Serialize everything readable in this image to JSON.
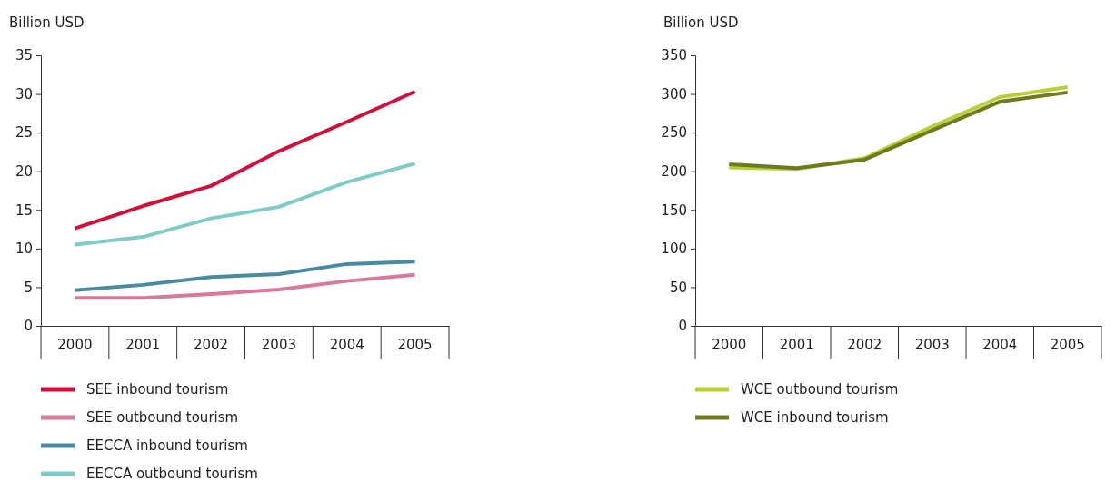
{
  "chart_data": [
    {
      "type": "line",
      "ylabel": "Billion USD",
      "categories": [
        "2000",
        "2001",
        "2002",
        "2003",
        "2004",
        "2005"
      ],
      "ylim": [
        0,
        35
      ],
      "yticks": [
        0,
        5,
        10,
        15,
        20,
        25,
        30,
        35
      ],
      "grid": false,
      "legend": "bottom",
      "marker": "none",
      "line_style": "solid",
      "series": [
        {
          "name": "SEE inbound tourism",
          "color": "#d0103a",
          "values": [
            12.6,
            15.5,
            18.1,
            22.6,
            26.4,
            30.3
          ]
        },
        {
          "name": "SEE outbound tourism",
          "color": "#d9799a",
          "values": [
            3.6,
            3.6,
            4.1,
            4.7,
            5.8,
            6.6
          ]
        },
        {
          "name": "EECCA inbound tourism",
          "color": "#4a8aa0",
          "values": [
            4.6,
            5.3,
            6.3,
            6.7,
            8.0,
            8.3
          ]
        },
        {
          "name": "EECCA outbound tourism",
          "color": "#7dcdc6",
          "values": [
            10.5,
            11.5,
            13.9,
            15.4,
            18.6,
            21.0
          ]
        }
      ]
    },
    {
      "type": "line",
      "ylabel": "Billion USD",
      "categories": [
        "2000",
        "2001",
        "2002",
        "2003",
        "2004",
        "2005"
      ],
      "ylim": [
        0,
        350
      ],
      "yticks": [
        0,
        50,
        100,
        150,
        200,
        250,
        300,
        350
      ],
      "grid": false,
      "legend": "bottom",
      "marker": "none",
      "line_style": "solid",
      "series": [
        {
          "name": "WCE outbound tourism",
          "color": "#bccf3a",
          "values": [
            205,
            203,
            217,
            258,
            296,
            309
          ]
        },
        {
          "name": "WCE inbound tourism",
          "color": "#6f7a1e",
          "values": [
            209,
            204,
            215,
            253,
            290,
            302
          ]
        }
      ]
    }
  ]
}
